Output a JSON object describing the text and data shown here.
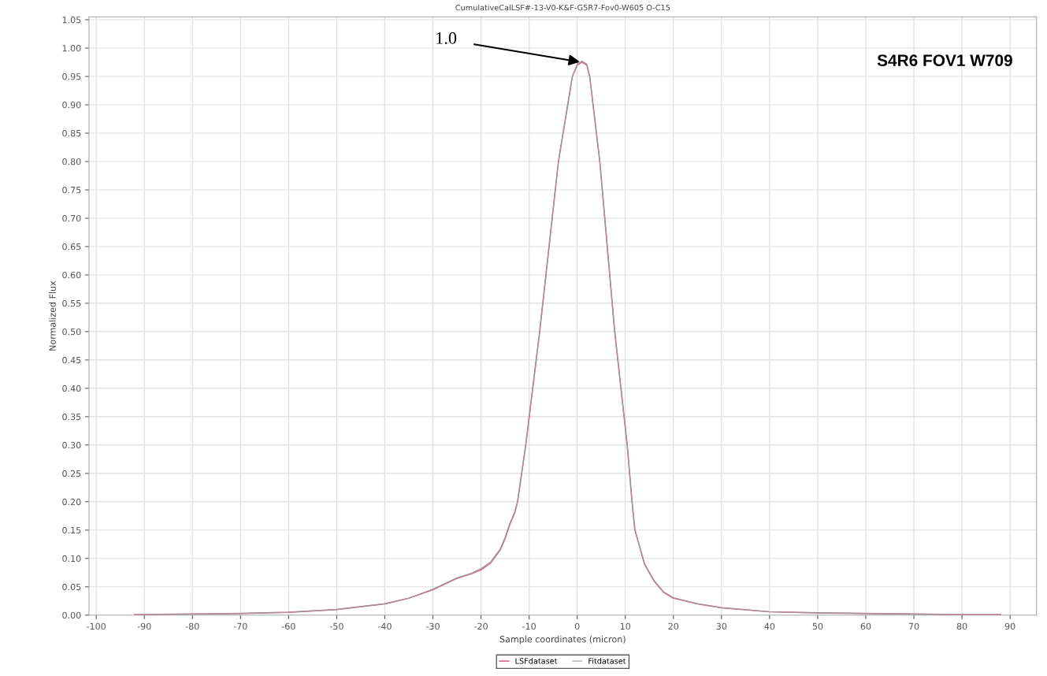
{
  "chart_data": {
    "type": "line",
    "title": "CumulativeCalLSF#-13-V0-K&F-G5R7-Fov0-W605 O-C15",
    "xlabel": "Sample coordinates (micron)",
    "ylabel": "Normalized Flux",
    "x": [
      -92,
      -80,
      -70,
      -60,
      -50,
      -40,
      -35,
      -30,
      -25,
      -22,
      -20,
      -18,
      -16,
      -15,
      -14,
      -13,
      -12.4,
      -10.7,
      -7.8,
      -3.9,
      -1,
      0,
      1,
      2,
      2.6,
      4.7,
      7.8,
      10.4,
      11.4,
      12,
      14,
      16,
      18,
      20,
      25,
      30,
      40,
      50,
      60,
      70,
      80,
      88
    ],
    "series": [
      {
        "name": "LSFdataset",
        "color": "#d9688a",
        "values": [
          0.001,
          0.002,
          0.003,
          0.005,
          0.01,
          0.02,
          0.03,
          0.045,
          0.065,
          0.073,
          0.08,
          0.092,
          0.115,
          0.135,
          0.16,
          0.18,
          0.2,
          0.3,
          0.5,
          0.8,
          0.95,
          0.97,
          0.975,
          0.97,
          0.95,
          0.8,
          0.5,
          0.3,
          0.2,
          0.15,
          0.09,
          0.06,
          0.04,
          0.03,
          0.02,
          0.013,
          0.006,
          0.004,
          0.003,
          0.002,
          0.001,
          0.001
        ]
      },
      {
        "name": "Fitdataset",
        "color": "#9a9a9a",
        "values": [
          0.001,
          0.002,
          0.003,
          0.005,
          0.01,
          0.02,
          0.03,
          0.046,
          0.066,
          0.074,
          0.082,
          0.094,
          0.117,
          0.137,
          0.162,
          0.182,
          0.2,
          0.3,
          0.5,
          0.8,
          0.95,
          0.972,
          0.977,
          0.972,
          0.95,
          0.8,
          0.5,
          0.3,
          0.2,
          0.15,
          0.091,
          0.061,
          0.041,
          0.031,
          0.02,
          0.013,
          0.006,
          0.004,
          0.003,
          0.002,
          0.001,
          0.001
        ]
      }
    ],
    "xlim": [
      -101.5,
      95.5
    ],
    "ylim": [
      0,
      1.055
    ],
    "xticks": [
      -100,
      -90,
      -80,
      -70,
      -60,
      -50,
      -40,
      -30,
      -20,
      -10,
      0,
      10,
      20,
      30,
      40,
      50,
      60,
      70,
      80,
      90
    ],
    "yticks": [
      {
        "value": 0,
        "label": "0.00"
      },
      {
        "value": 0.05,
        "label": "0.05"
      },
      {
        "value": 0.1,
        "label": "0.10"
      },
      {
        "value": 0.15,
        "label": "0.15"
      },
      {
        "value": 0.2,
        "label": "0.20"
      },
      {
        "value": 0.25,
        "label": "0.25"
      },
      {
        "value": 0.3,
        "label": "0.30"
      },
      {
        "value": 0.35,
        "label": "0.35"
      },
      {
        "value": 0.4,
        "label": "0.40"
      },
      {
        "value": 0.45,
        "label": "0.45"
      },
      {
        "value": 0.5,
        "label": "0.50"
      },
      {
        "value": 0.55,
        "label": "0.55"
      },
      {
        "value": 0.6,
        "label": "0.60"
      },
      {
        "value": 0.65,
        "label": "0.65"
      },
      {
        "value": 0.7,
        "label": "0.70"
      },
      {
        "value": 0.75,
        "label": "0.75"
      },
      {
        "value": 0.8,
        "label": "0.80"
      },
      {
        "value": 0.85,
        "label": "0.85"
      },
      {
        "value": 0.9,
        "label": "0.90"
      },
      {
        "value": 0.95,
        "label": "0.95"
      },
      {
        "value": 1.0,
        "label": "1.00"
      },
      {
        "value": 1.05,
        "label": "1.05"
      }
    ],
    "annotations": [
      {
        "text": "1.0",
        "x": 1,
        "y": 0.975
      },
      "S4R6 FOV1 W709"
    ],
    "grid": true,
    "legend": "bottom",
    "marker": "none",
    "line_style": "solid"
  }
}
